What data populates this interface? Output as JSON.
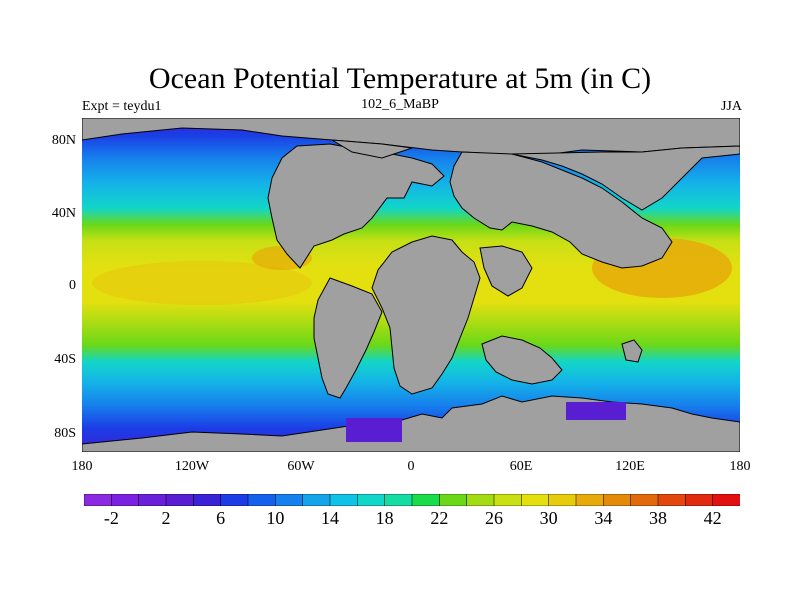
{
  "title": "Ocean Potential Temperature at 5m (in C)",
  "subtitle_left": "Expt = teydu1",
  "subtitle_center": "102_6_MaBP",
  "subtitle_right": "JJA",
  "y_ticks": [
    "80N",
    "40N",
    "0",
    "40S",
    "80S"
  ],
  "x_ticks": [
    "180",
    "120W",
    "60W",
    "0",
    "60E",
    "120E",
    "180"
  ],
  "colorbar": {
    "labels": [
      "-2",
      "2",
      "6",
      "10",
      "14",
      "18",
      "22",
      "26",
      "30",
      "34",
      "38",
      "42"
    ],
    "colors": [
      "#8a2be2",
      "#7a22e0",
      "#6a1fd9",
      "#5a1ed2",
      "#3a22d6",
      "#1c3ce6",
      "#1660ee",
      "#1680ec",
      "#14a4ea",
      "#10c2e6",
      "#12d6c8",
      "#14dca2",
      "#1adc4a",
      "#6ad818",
      "#a4dc14",
      "#c8e014",
      "#e4e010",
      "#e6cc0c",
      "#e6aa0a",
      "#e48a0a",
      "#e26a0a",
      "#e2480e",
      "#e22a10",
      "#e21010"
    ]
  },
  "colors": {
    "land": "#a0a0a0",
    "coast": "#000000",
    "polar": "#3a22d6",
    "cold": "#1c3ce6",
    "cool": "#1680ec",
    "mild": "#14b4e8",
    "teal": "#12d6c8",
    "green": "#6ad818",
    "lime": "#a4dc14",
    "yellow": "#e4e010",
    "warm": "#e6c40c",
    "orange": "#e6aa0a"
  }
}
